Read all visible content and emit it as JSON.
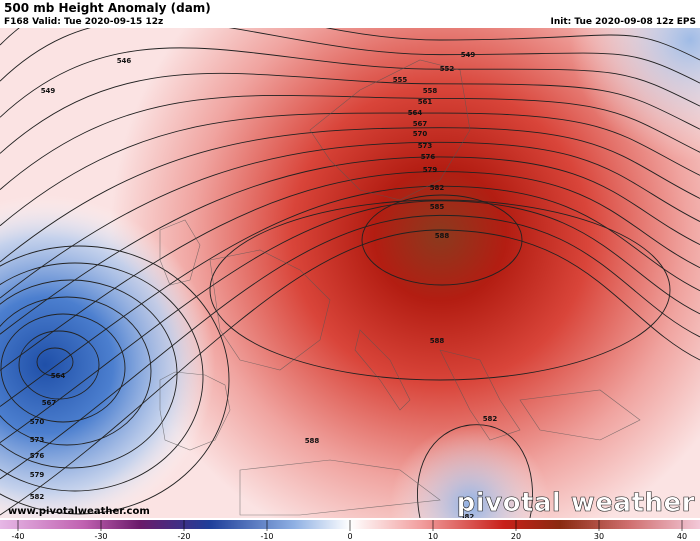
{
  "header": {
    "title": "500 mb Height Anomaly (dam)",
    "valid": "F168 Valid: Tue 2020-09-15 12z",
    "init": "Init: Tue 2020-09-08 12z EPS"
  },
  "map": {
    "contour_labels": [
      546,
      549,
      549,
      552,
      555,
      558,
      561,
      564,
      567,
      570,
      573,
      576,
      579,
      582,
      585,
      588,
      588,
      564,
      567,
      570,
      573,
      576,
      579,
      582,
      588,
      582,
      582
    ]
  },
  "footer": {
    "website": "www.pivotalweather.com",
    "logo": "pivotal weather"
  },
  "colorbar": {
    "lim": [
      -40,
      40
    ],
    "ticks": [
      -40,
      -30,
      -20,
      -10,
      0,
      10,
      20,
      30,
      40
    ]
  }
}
